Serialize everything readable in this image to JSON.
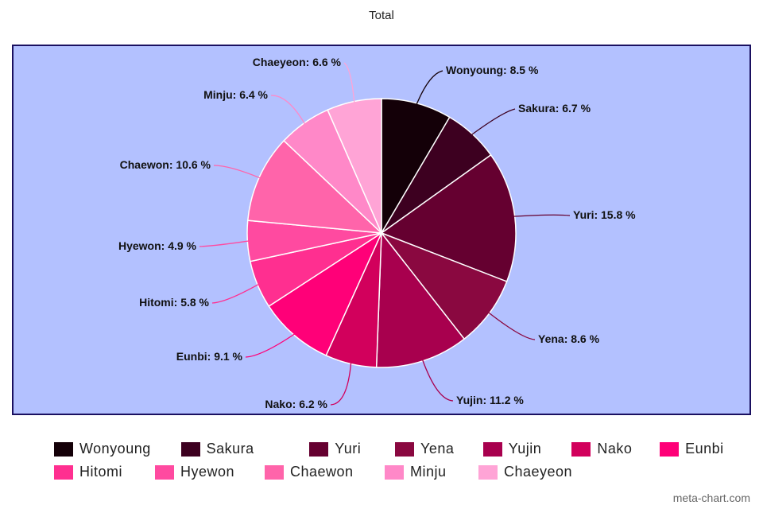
{
  "chart_data": {
    "type": "pie",
    "title": "Total",
    "label_format": "{name}: {value} %",
    "slices": [
      {
        "name": "Wonyoung",
        "value": 8.5,
        "color": "#140008"
      },
      {
        "name": "Sakura",
        "value": 6.7,
        "color": "#3d0020"
      },
      {
        "name": "Yuri",
        "value": 15.8,
        "color": "#650030"
      },
      {
        "name": "Yena",
        "value": 8.6,
        "color": "#8a0840"
      },
      {
        "name": "Yujin",
        "value": 11.2,
        "color": "#a8004e"
      },
      {
        "name": "Nako",
        "value": 6.2,
        "color": "#d2005c"
      },
      {
        "name": "Eunbi",
        "value": 9.1,
        "color": "#ff0078"
      },
      {
        "name": "Hitomi",
        "value": 5.8,
        "color": "#ff2f90"
      },
      {
        "name": "Hyewon",
        "value": 4.9,
        "color": "#ff4aa0"
      },
      {
        "name": "Chaewon",
        "value": 10.6,
        "color": "#ff64aa"
      },
      {
        "name": "Minju",
        "value": 6.4,
        "color": "#ff88c8"
      },
      {
        "name": "Chaeyeon",
        "value": 6.6,
        "color": "#ffa4d6"
      }
    ],
    "legend_placement": "bottom",
    "background_color": "#b3c1ff"
  },
  "watermark": "meta-chart.com"
}
